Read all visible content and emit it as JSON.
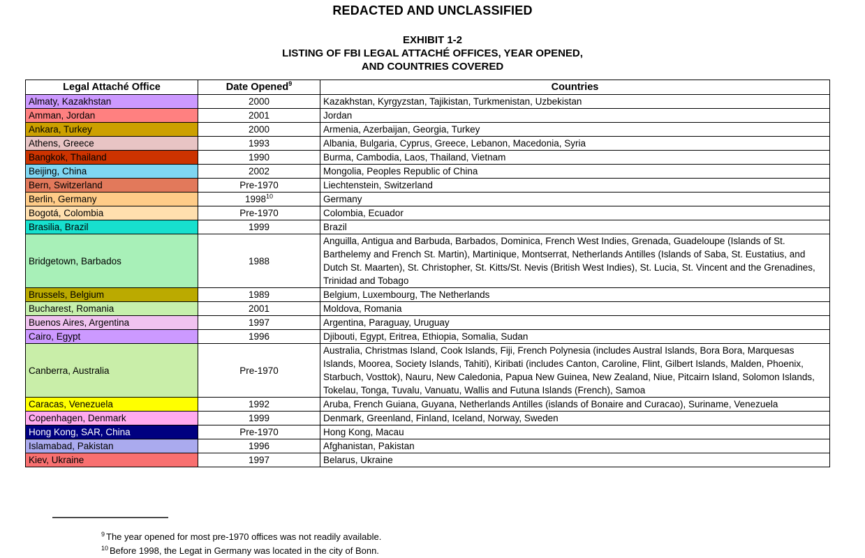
{
  "page": {
    "classification": "REDACTED AND UNCLASSIFIED",
    "exhibit_line1": "EXHIBIT 1-2",
    "exhibit_line2": "LISTING OF FBI LEGAL ATTACHÉ OFFICES, YEAR OPENED,",
    "exhibit_line3": "AND COUNTRIES COVERED"
  },
  "table": {
    "columns": [
      "Legal Attaché Office",
      "Date Opened",
      "Countries"
    ],
    "date_opened_sup_marker": "9",
    "rows": [
      {
        "office": "Almaty, Kazakhstan",
        "color": "#CC99FF",
        "text_color": "#000000",
        "date": "2000",
        "date_sup": "",
        "countries": "Kazakhstan, Kyrgyzstan, Tajikistan, Turkmenistan, Uzbekistan"
      },
      {
        "office": "Amman, Jordan",
        "color": "#FF8080",
        "text_color": "#000000",
        "date": "2001",
        "date_sup": "",
        "countries": "Jordan"
      },
      {
        "office": "Ankara, Turkey",
        "color": "#CCA000",
        "text_color": "#000000",
        "date": "2000",
        "date_sup": "",
        "countries": "Armenia, Azerbaijan, Georgia, Turkey"
      },
      {
        "office": "Athens, Greece",
        "color": "#E8C4C4",
        "text_color": "#000000",
        "date": "1993",
        "date_sup": "",
        "countries": "Albania, Bulgaria, Cyprus, Greece, Lebanon, Macedonia, Syria"
      },
      {
        "office": "Bangkok, Thailand",
        "color": "#CC3300",
        "text_color": "#000000",
        "date": "1990",
        "date_sup": "",
        "countries": "Burma, Cambodia, Laos, Thailand, Vietnam"
      },
      {
        "office": "Beijing, China",
        "color": "#7FD6F2",
        "text_color": "#000000",
        "date": "2002",
        "date_sup": "",
        "countries": "Mongolia, Peoples Republic of China"
      },
      {
        "office": "Bern, Switzerland",
        "color": "#E2795B",
        "text_color": "#000000",
        "date": "Pre-1970",
        "date_sup": "",
        "countries": "Liechtenstein, Switzerland"
      },
      {
        "office": "Berlin, Germany",
        "color": "#FFCC88",
        "text_color": "#000000",
        "date": "1998",
        "date_sup": "10",
        "countries": "Germany"
      },
      {
        "office": "Bogotá, Colombia",
        "color": "#FFDFAE",
        "text_color": "#000000",
        "date": "Pre-1970",
        "date_sup": "",
        "countries": "Colombia, Ecuador"
      },
      {
        "office": "Brasilia, Brazil",
        "color": "#17E0CE",
        "text_color": "#000000",
        "date": "1999",
        "date_sup": "",
        "countries": "Brazil"
      },
      {
        "office": "Bridgetown, Barbados",
        "color": "#A8F0B8",
        "text_color": "#000000",
        "date": "1988",
        "date_sup": "",
        "countries": "Anguilla, Antigua and Barbuda, Barbados, Dominica, French West Indies, Grenada, Guadeloupe (Islands of St. Barthelemy and French St. Martin), Martinique, Montserrat, Netherlands Antilles (Islands of Saba, St. Eustatius, and Dutch St. Maarten), St. Christopher, St. Kitts/St. Nevis (British West Indies), St. Lucia, St. Vincent and the Grenadines, Trinidad and Tobago"
      },
      {
        "office": "Brussels, Belgium",
        "color": "#BBAA00",
        "text_color": "#000000",
        "date": "1989",
        "date_sup": "",
        "countries": "Belgium, Luxembourg, The Netherlands"
      },
      {
        "office": "Bucharest, Romania",
        "color": "#C6F0AC",
        "text_color": "#000000",
        "date": "2001",
        "date_sup": "",
        "countries": "Moldova, Romania"
      },
      {
        "office": "Buenos Aires, Argentina",
        "color": "#F0C2F0",
        "text_color": "#000000",
        "date": "1997",
        "date_sup": "",
        "countries": "Argentina, Paraguay, Uruguay"
      },
      {
        "office": "Cairo, Egypt",
        "color": "#CC99FF",
        "text_color": "#000000",
        "date": "1996",
        "date_sup": "",
        "countries": "Djibouti, Egypt, Eritrea, Ethiopia, Somalia, Sudan"
      },
      {
        "office": "Canberra, Australia",
        "color": "#C9EEA9",
        "text_color": "#000000",
        "date": "Pre-1970",
        "date_sup": "",
        "countries": "Australia, Christmas Island, Cook Islands, Fiji, French Polynesia (includes Austral Islands, Bora Bora, Marquesas Islands, Moorea, Society Islands, Tahiti), Kiribati (includes Canton, Caroline, Flint, Gilbert Islands, Malden, Phoenix, Starbuch, Vosttok), Nauru, New Caledonia, Papua New Guinea, New Zealand, Niue, Pitcairn Island, Solomon Islands, Tokelau, Tonga, Tuvalu, Vanuatu, Wallis and Futuna Islands (French), Samoa"
      },
      {
        "office": "Caracas, Venezuela",
        "color": "#FFFF00",
        "text_color": "#000000",
        "date": "1992",
        "date_sup": "",
        "countries": "Aruba, French Guiana, Guyana, Netherlands Antilles (islands of Bonaire and Curacao), Suriname, Venezuela"
      },
      {
        "office": "Copenhagen, Denmark",
        "color": "#FFAAEE",
        "text_color": "#000000",
        "date": "1999",
        "date_sup": "",
        "countries": "Denmark, Greenland, Finland, Iceland, Norway, Sweden"
      },
      {
        "office": "Hong Kong, SAR, China",
        "color": "#000080",
        "text_color": "#FFFFFF",
        "date": "Pre-1970",
        "date_sup": "",
        "countries": "Hong Kong, Macau"
      },
      {
        "office": "Islamabad, Pakistan",
        "color": "#AAAAEE",
        "text_color": "#000000",
        "date": "1996",
        "date_sup": "",
        "countries": "Afghanistan, Pakistan"
      },
      {
        "office": "Kiev, Ukraine",
        "color": "#F87070",
        "text_color": "#000000",
        "date": "1997",
        "date_sup": "",
        "countries": "Belarus, Ukraine"
      }
    ]
  },
  "footnotes": [
    {
      "marker": "9",
      "text": "The year opened for most pre-1970 offices was not readily available."
    },
    {
      "marker": "10",
      "text": "Before 1998, the Legat in Germany was located in the city of Bonn."
    }
  ]
}
